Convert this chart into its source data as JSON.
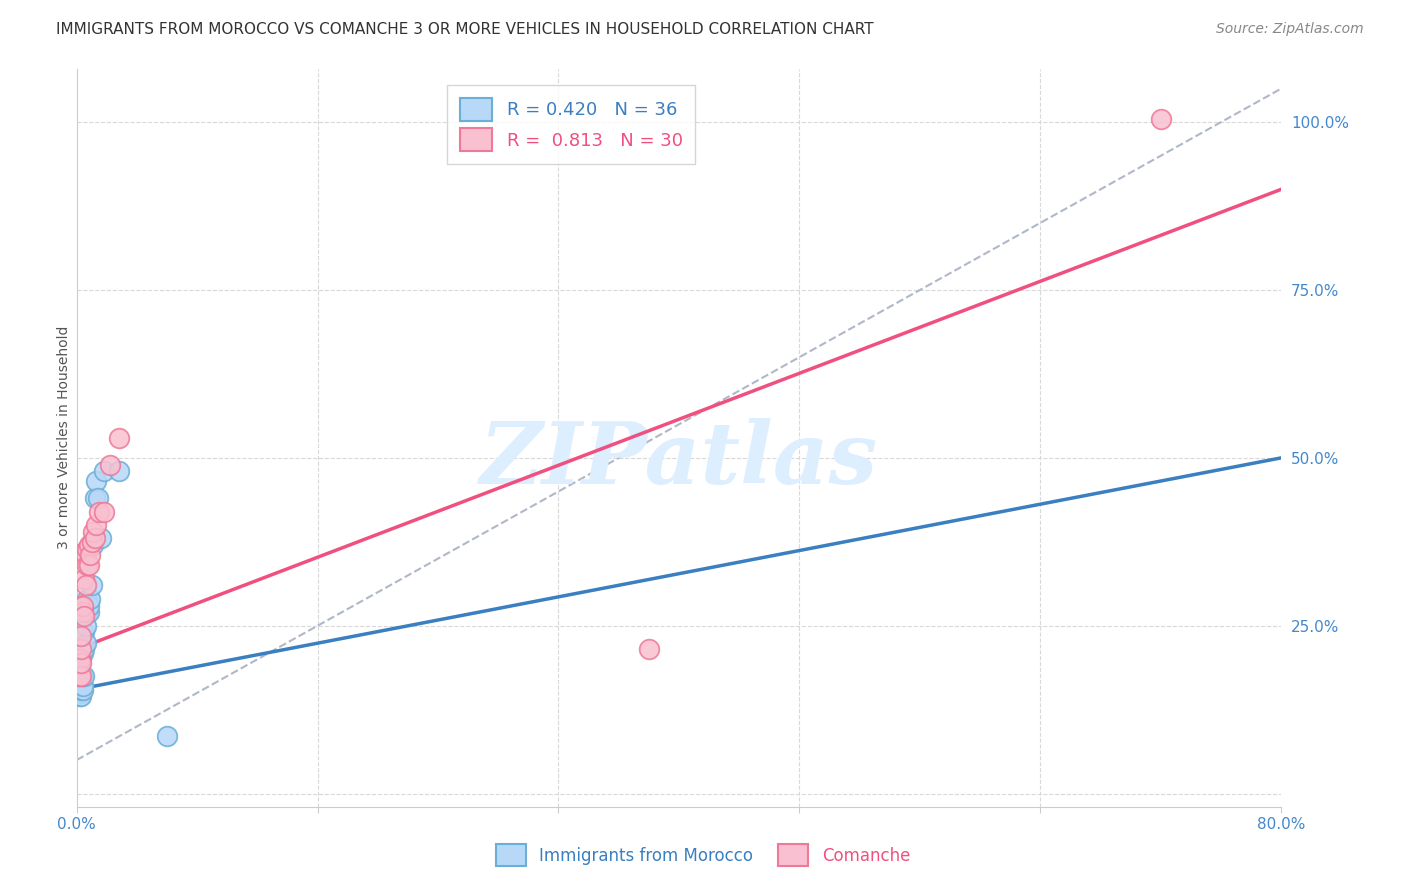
{
  "title": "IMMIGRANTS FROM MOROCCO VS COMANCHE 3 OR MORE VEHICLES IN HOUSEHOLD CORRELATION CHART",
  "source": "Source: ZipAtlas.com",
  "ylabel": "3 or more Vehicles in Household",
  "xlim": [
    0.0,
    0.8
  ],
  "ylim": [
    -0.02,
    1.08
  ],
  "y_ticks_right": [
    0.0,
    0.25,
    0.5,
    0.75,
    1.0
  ],
  "y_tick_labels_right": [
    "",
    "25.0%",
    "50.0%",
    "75.0%",
    "100.0%"
  ],
  "legend1_label": "R = 0.420   N = 36",
  "legend2_label": "R =  0.813   N = 30",
  "watermark": "ZIPatlas",
  "blue_points_x": [
    0.001,
    0.001,
    0.001,
    0.002,
    0.002,
    0.002,
    0.002,
    0.002,
    0.003,
    0.003,
    0.003,
    0.003,
    0.003,
    0.004,
    0.004,
    0.004,
    0.004,
    0.005,
    0.005,
    0.005,
    0.006,
    0.006,
    0.007,
    0.007,
    0.008,
    0.008,
    0.009,
    0.01,
    0.011,
    0.012,
    0.013,
    0.014,
    0.016,
    0.018,
    0.028,
    0.06
  ],
  "blue_points_y": [
    0.155,
    0.16,
    0.165,
    0.145,
    0.15,
    0.155,
    0.165,
    0.17,
    0.145,
    0.155,
    0.16,
    0.165,
    0.2,
    0.155,
    0.16,
    0.175,
    0.21,
    0.175,
    0.215,
    0.24,
    0.225,
    0.25,
    0.27,
    0.29,
    0.27,
    0.28,
    0.29,
    0.31,
    0.37,
    0.44,
    0.465,
    0.44,
    0.38,
    0.48,
    0.48,
    0.085
  ],
  "pink_points_x": [
    0.001,
    0.002,
    0.002,
    0.002,
    0.003,
    0.003,
    0.003,
    0.003,
    0.004,
    0.004,
    0.005,
    0.005,
    0.005,
    0.006,
    0.006,
    0.007,
    0.007,
    0.008,
    0.008,
    0.009,
    0.01,
    0.011,
    0.012,
    0.013,
    0.015,
    0.018,
    0.022,
    0.028,
    0.38,
    0.72
  ],
  "pink_points_y": [
    0.175,
    0.175,
    0.2,
    0.28,
    0.175,
    0.195,
    0.215,
    0.235,
    0.27,
    0.28,
    0.265,
    0.32,
    0.36,
    0.31,
    0.355,
    0.34,
    0.365,
    0.34,
    0.37,
    0.355,
    0.375,
    0.39,
    0.38,
    0.4,
    0.42,
    0.42,
    0.49,
    0.53,
    0.215,
    1.005
  ],
  "blue_line_x": [
    0.0,
    0.8
  ],
  "blue_line_y": [
    0.155,
    0.5
  ],
  "pink_line_x": [
    0.0,
    0.8
  ],
  "pink_line_y": [
    0.215,
    0.9
  ],
  "dashed_line_x": [
    0.0,
    0.8
  ],
  "dashed_line_y": [
    0.05,
    1.05
  ],
  "background_color": "#ffffff",
  "grid_color": "#d8d8d8",
  "title_fontsize": 11,
  "axis_label_fontsize": 10,
  "tick_fontsize": 11,
  "legend_fontsize": 13,
  "source_fontsize": 10
}
